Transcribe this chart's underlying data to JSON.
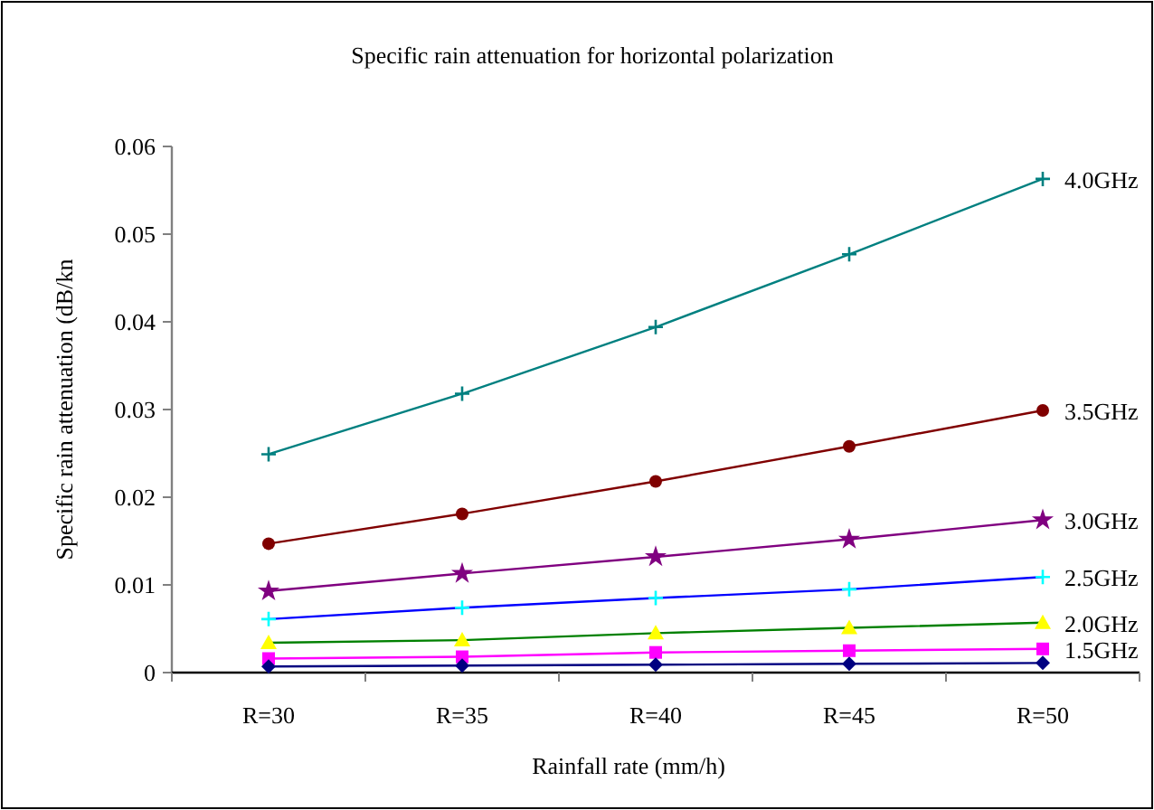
{
  "chart_data": {
    "type": "line",
    "title": "Specific rain attenuation for horizontal polarization",
    "xlabel": "Rainfall rate (mm/h)",
    "ylabel": "Specific rain attenuation (dB/kn",
    "categories": [
      "R=30",
      "R=35",
      "R=40",
      "R=45",
      "R=50"
    ],
    "ylim": [
      0,
      0.06
    ],
    "yticks": [
      {
        "value": 0,
        "label": "0"
      },
      {
        "value": 0.01,
        "label": "0.01"
      },
      {
        "value": 0.02,
        "label": "0.02"
      },
      {
        "value": 0.03,
        "label": "0.03"
      },
      {
        "value": 0.04,
        "label": "0.04"
      },
      {
        "value": 0.05,
        "label": "0.05"
      },
      {
        "value": 0.06,
        "label": "0.06"
      }
    ],
    "grid": false,
    "series": [
      {
        "name": "4.0GHz",
        "color": "#008080",
        "marker": "cross",
        "values": [
          0.0249,
          0.0318,
          0.0394,
          0.0477,
          0.0563
        ]
      },
      {
        "name": "3.5GHz",
        "color": "#800000",
        "marker": "circle",
        "values": [
          0.0147,
          0.0181,
          0.0218,
          0.0258,
          0.0299
        ]
      },
      {
        "name": "3.0GHz",
        "color": "#800080",
        "marker": "star",
        "values": [
          0.0093,
          0.0113,
          0.0132,
          0.0152,
          0.0174
        ]
      },
      {
        "name": "2.5GHz",
        "color": "#0000ff",
        "marker": "cross",
        "colors": [
          "#00ffff",
          "#00ffff",
          "#00ffff",
          "#00ffff",
          "#00ffff"
        ],
        "values": [
          0.0061,
          0.0074,
          0.0085,
          0.0095,
          0.0109
        ]
      },
      {
        "name": "2.0GHz",
        "color": "#008000",
        "marker": "triangle",
        "colors": [
          "#ffff00",
          "#ffff00",
          "#ffff00",
          "#ffff00",
          "#ffff00"
        ],
        "values": [
          0.0034,
          0.0037,
          0.0045,
          0.0051,
          0.0057
        ]
      },
      {
        "name": "1.5GHz",
        "color": "#ff00ff",
        "marker": "square",
        "values": [
          0.0016,
          0.0018,
          0.0023,
          0.0025,
          0.0027
        ]
      },
      {
        "color": "#000080",
        "marker": "diamond",
        "values": [
          0.0007,
          0.0008,
          0.0009,
          0.001,
          0.0011
        ]
      }
    ]
  }
}
